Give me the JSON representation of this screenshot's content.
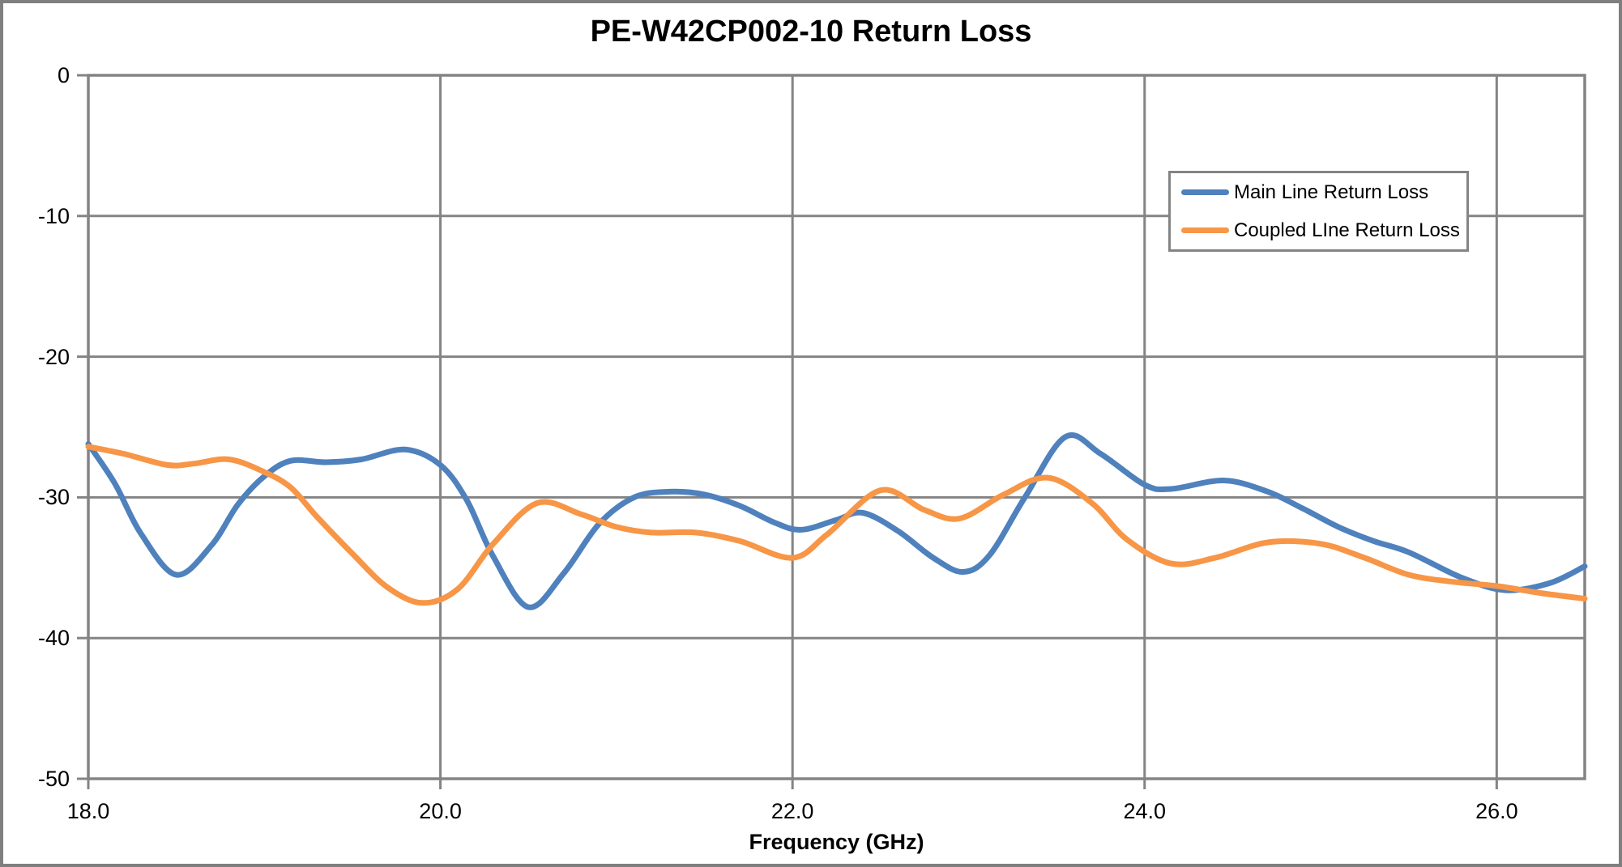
{
  "figure": {
    "title": "PE-W42CP002-10 Return Loss"
  },
  "chart_data": {
    "type": "line",
    "title": "PE-W42CP002-10 Return Loss",
    "xlabel": "Frequency (GHz)",
    "ylabel": "",
    "xlim": [
      18.0,
      26.5
    ],
    "ylim": [
      -50,
      0
    ],
    "grid": true,
    "grid_color": "#848484",
    "frame_color": "#7F7F7F",
    "axis_text_color": "#000000",
    "legend_position": "inside-upper-right",
    "x_ticks": [
      {
        "value": 18.0,
        "label": "18.0"
      },
      {
        "value": 20.0,
        "label": "20.0"
      },
      {
        "value": 22.0,
        "label": "22.0"
      },
      {
        "value": 24.0,
        "label": "24.0"
      },
      {
        "value": 26.0,
        "label": "26.0"
      }
    ],
    "y_ticks": [
      {
        "value": 0,
        "label": "0"
      },
      {
        "value": -10,
        "label": "-10"
      },
      {
        "value": -20,
        "label": "-20"
      },
      {
        "value": -30,
        "label": "-30"
      },
      {
        "value": -40,
        "label": "-40"
      },
      {
        "value": -50,
        "label": "-50"
      }
    ],
    "series": [
      {
        "name": "Main Line Return Loss",
        "color": "#4F81BD",
        "points": [
          [
            18.0,
            -26.2
          ],
          [
            18.15,
            -29.0
          ],
          [
            18.3,
            -32.6
          ],
          [
            18.5,
            -35.5
          ],
          [
            18.7,
            -33.4
          ],
          [
            18.85,
            -30.5
          ],
          [
            19.0,
            -28.5
          ],
          [
            19.15,
            -27.4
          ],
          [
            19.35,
            -27.5
          ],
          [
            19.55,
            -27.3
          ],
          [
            19.8,
            -26.6
          ],
          [
            20.0,
            -27.7
          ],
          [
            20.15,
            -30.2
          ],
          [
            20.3,
            -34.2
          ],
          [
            20.5,
            -37.8
          ],
          [
            20.7,
            -35.4
          ],
          [
            20.9,
            -31.9
          ],
          [
            21.1,
            -30.0
          ],
          [
            21.3,
            -29.6
          ],
          [
            21.5,
            -29.8
          ],
          [
            21.7,
            -30.6
          ],
          [
            21.9,
            -31.8
          ],
          [
            22.05,
            -32.3
          ],
          [
            22.25,
            -31.6
          ],
          [
            22.4,
            -31.1
          ],
          [
            22.6,
            -32.4
          ],
          [
            22.8,
            -34.3
          ],
          [
            22.97,
            -35.3
          ],
          [
            23.12,
            -34.1
          ],
          [
            23.32,
            -30.0
          ],
          [
            23.55,
            -25.7
          ],
          [
            23.75,
            -26.9
          ],
          [
            24.0,
            -29.1
          ],
          [
            24.15,
            -29.4
          ],
          [
            24.45,
            -28.8
          ],
          [
            24.7,
            -29.6
          ],
          [
            24.9,
            -30.8
          ],
          [
            25.1,
            -32.1
          ],
          [
            25.3,
            -33.1
          ],
          [
            25.5,
            -33.9
          ],
          [
            25.8,
            -35.7
          ],
          [
            26.05,
            -36.6
          ],
          [
            26.3,
            -36.1
          ],
          [
            26.5,
            -34.9
          ]
        ]
      },
      {
        "name": "Coupled LIne Return Loss",
        "color": "#F79646",
        "points": [
          [
            18.0,
            -26.4
          ],
          [
            18.2,
            -26.9
          ],
          [
            18.45,
            -27.7
          ],
          [
            18.6,
            -27.6
          ],
          [
            18.8,
            -27.3
          ],
          [
            19.0,
            -28.2
          ],
          [
            19.15,
            -29.3
          ],
          [
            19.3,
            -31.4
          ],
          [
            19.5,
            -34.0
          ],
          [
            19.7,
            -36.4
          ],
          [
            19.9,
            -37.5
          ],
          [
            20.1,
            -36.5
          ],
          [
            20.3,
            -33.3
          ],
          [
            20.55,
            -30.4
          ],
          [
            20.8,
            -31.2
          ],
          [
            21.0,
            -32.1
          ],
          [
            21.2,
            -32.5
          ],
          [
            21.45,
            -32.5
          ],
          [
            21.7,
            -33.1
          ],
          [
            22.0,
            -34.3
          ],
          [
            22.2,
            -32.6
          ],
          [
            22.5,
            -29.5
          ],
          [
            22.75,
            -30.9
          ],
          [
            22.95,
            -31.5
          ],
          [
            23.2,
            -29.8
          ],
          [
            23.45,
            -28.6
          ],
          [
            23.7,
            -30.4
          ],
          [
            23.9,
            -33.0
          ],
          [
            24.15,
            -34.7
          ],
          [
            24.4,
            -34.3
          ],
          [
            24.7,
            -33.2
          ],
          [
            25.0,
            -33.3
          ],
          [
            25.25,
            -34.3
          ],
          [
            25.5,
            -35.5
          ],
          [
            25.75,
            -36.0
          ],
          [
            26.0,
            -36.3
          ],
          [
            26.25,
            -36.8
          ],
          [
            26.5,
            -37.2
          ]
        ]
      }
    ]
  }
}
